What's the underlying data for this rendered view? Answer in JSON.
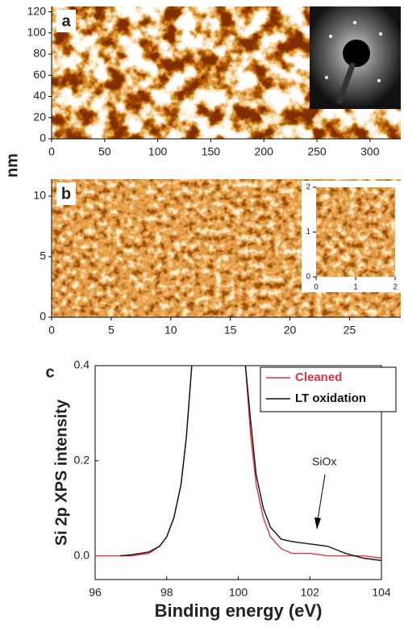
{
  "chart_data": [
    {
      "type": "image",
      "label": "a",
      "ylabel": "nm",
      "xlim": [
        0,
        329
      ],
      "xticks": [
        0,
        50,
        100,
        150,
        200,
        250,
        300
      ],
      "ylim": [
        0,
        125
      ],
      "yticks": [
        0,
        20,
        40,
        60,
        80,
        100,
        120
      ]
    },
    {
      "type": "image",
      "label": "b",
      "xlim": [
        0,
        29.3
      ],
      "xticks": [
        0,
        5,
        10,
        15,
        20,
        25
      ],
      "ylim": [
        0,
        11.4
      ],
      "yticks": [
        0,
        5,
        10
      ],
      "inset": {
        "xlim": [
          0,
          2
        ],
        "xticks": [
          0,
          1,
          2
        ],
        "ylim": [
          0,
          2
        ],
        "yticks": [
          0,
          1,
          2
        ]
      }
    },
    {
      "type": "line",
      "label": "c",
      "xlabel": "Binding energy (eV)",
      "ylabel": "Si 2p XPS intensity",
      "annotation": "SiOx",
      "xlim": [
        96,
        104
      ],
      "xticks": [
        96,
        98,
        100,
        102,
        104
      ],
      "ylim": [
        -0.05,
        0.4
      ],
      "yticks": [
        {
          "value": 0,
          "label": "0.0"
        },
        0.2,
        0.4
      ],
      "legend": "upper right",
      "x": [
        96.0,
        96.7,
        97.0,
        97.5,
        97.8,
        98.0,
        98.2,
        98.4,
        98.55,
        98.7,
        99.45,
        100.2,
        100.35,
        100.5,
        100.7,
        100.9,
        101.2,
        101.5,
        102.0,
        102.5,
        103.0,
        103.5,
        104.0
      ],
      "series": [
        {
          "name": "Cleaned",
          "color": "#e8303c",
          "values": [
            0,
            0,
            0,
            0.005,
            0.02,
            0.04,
            0.08,
            0.15,
            0.25,
            0.4,
            null,
            0.4,
            0.25,
            0.15,
            0.08,
            0.04,
            0.015,
            0.005,
            0.005,
            0,
            0,
            0,
            -0.005
          ]
        },
        {
          "name": "LT oxidation",
          "color": "#111111",
          "values": [
            null,
            0,
            0.002,
            0.008,
            0.02,
            0.04,
            0.08,
            0.15,
            0.25,
            0.4,
            null,
            0.4,
            0.28,
            0.17,
            0.1,
            0.06,
            0.035,
            0.03,
            0.025,
            0.02,
            0.005,
            -0.005,
            -0.01
          ]
        }
      ]
    }
  ]
}
